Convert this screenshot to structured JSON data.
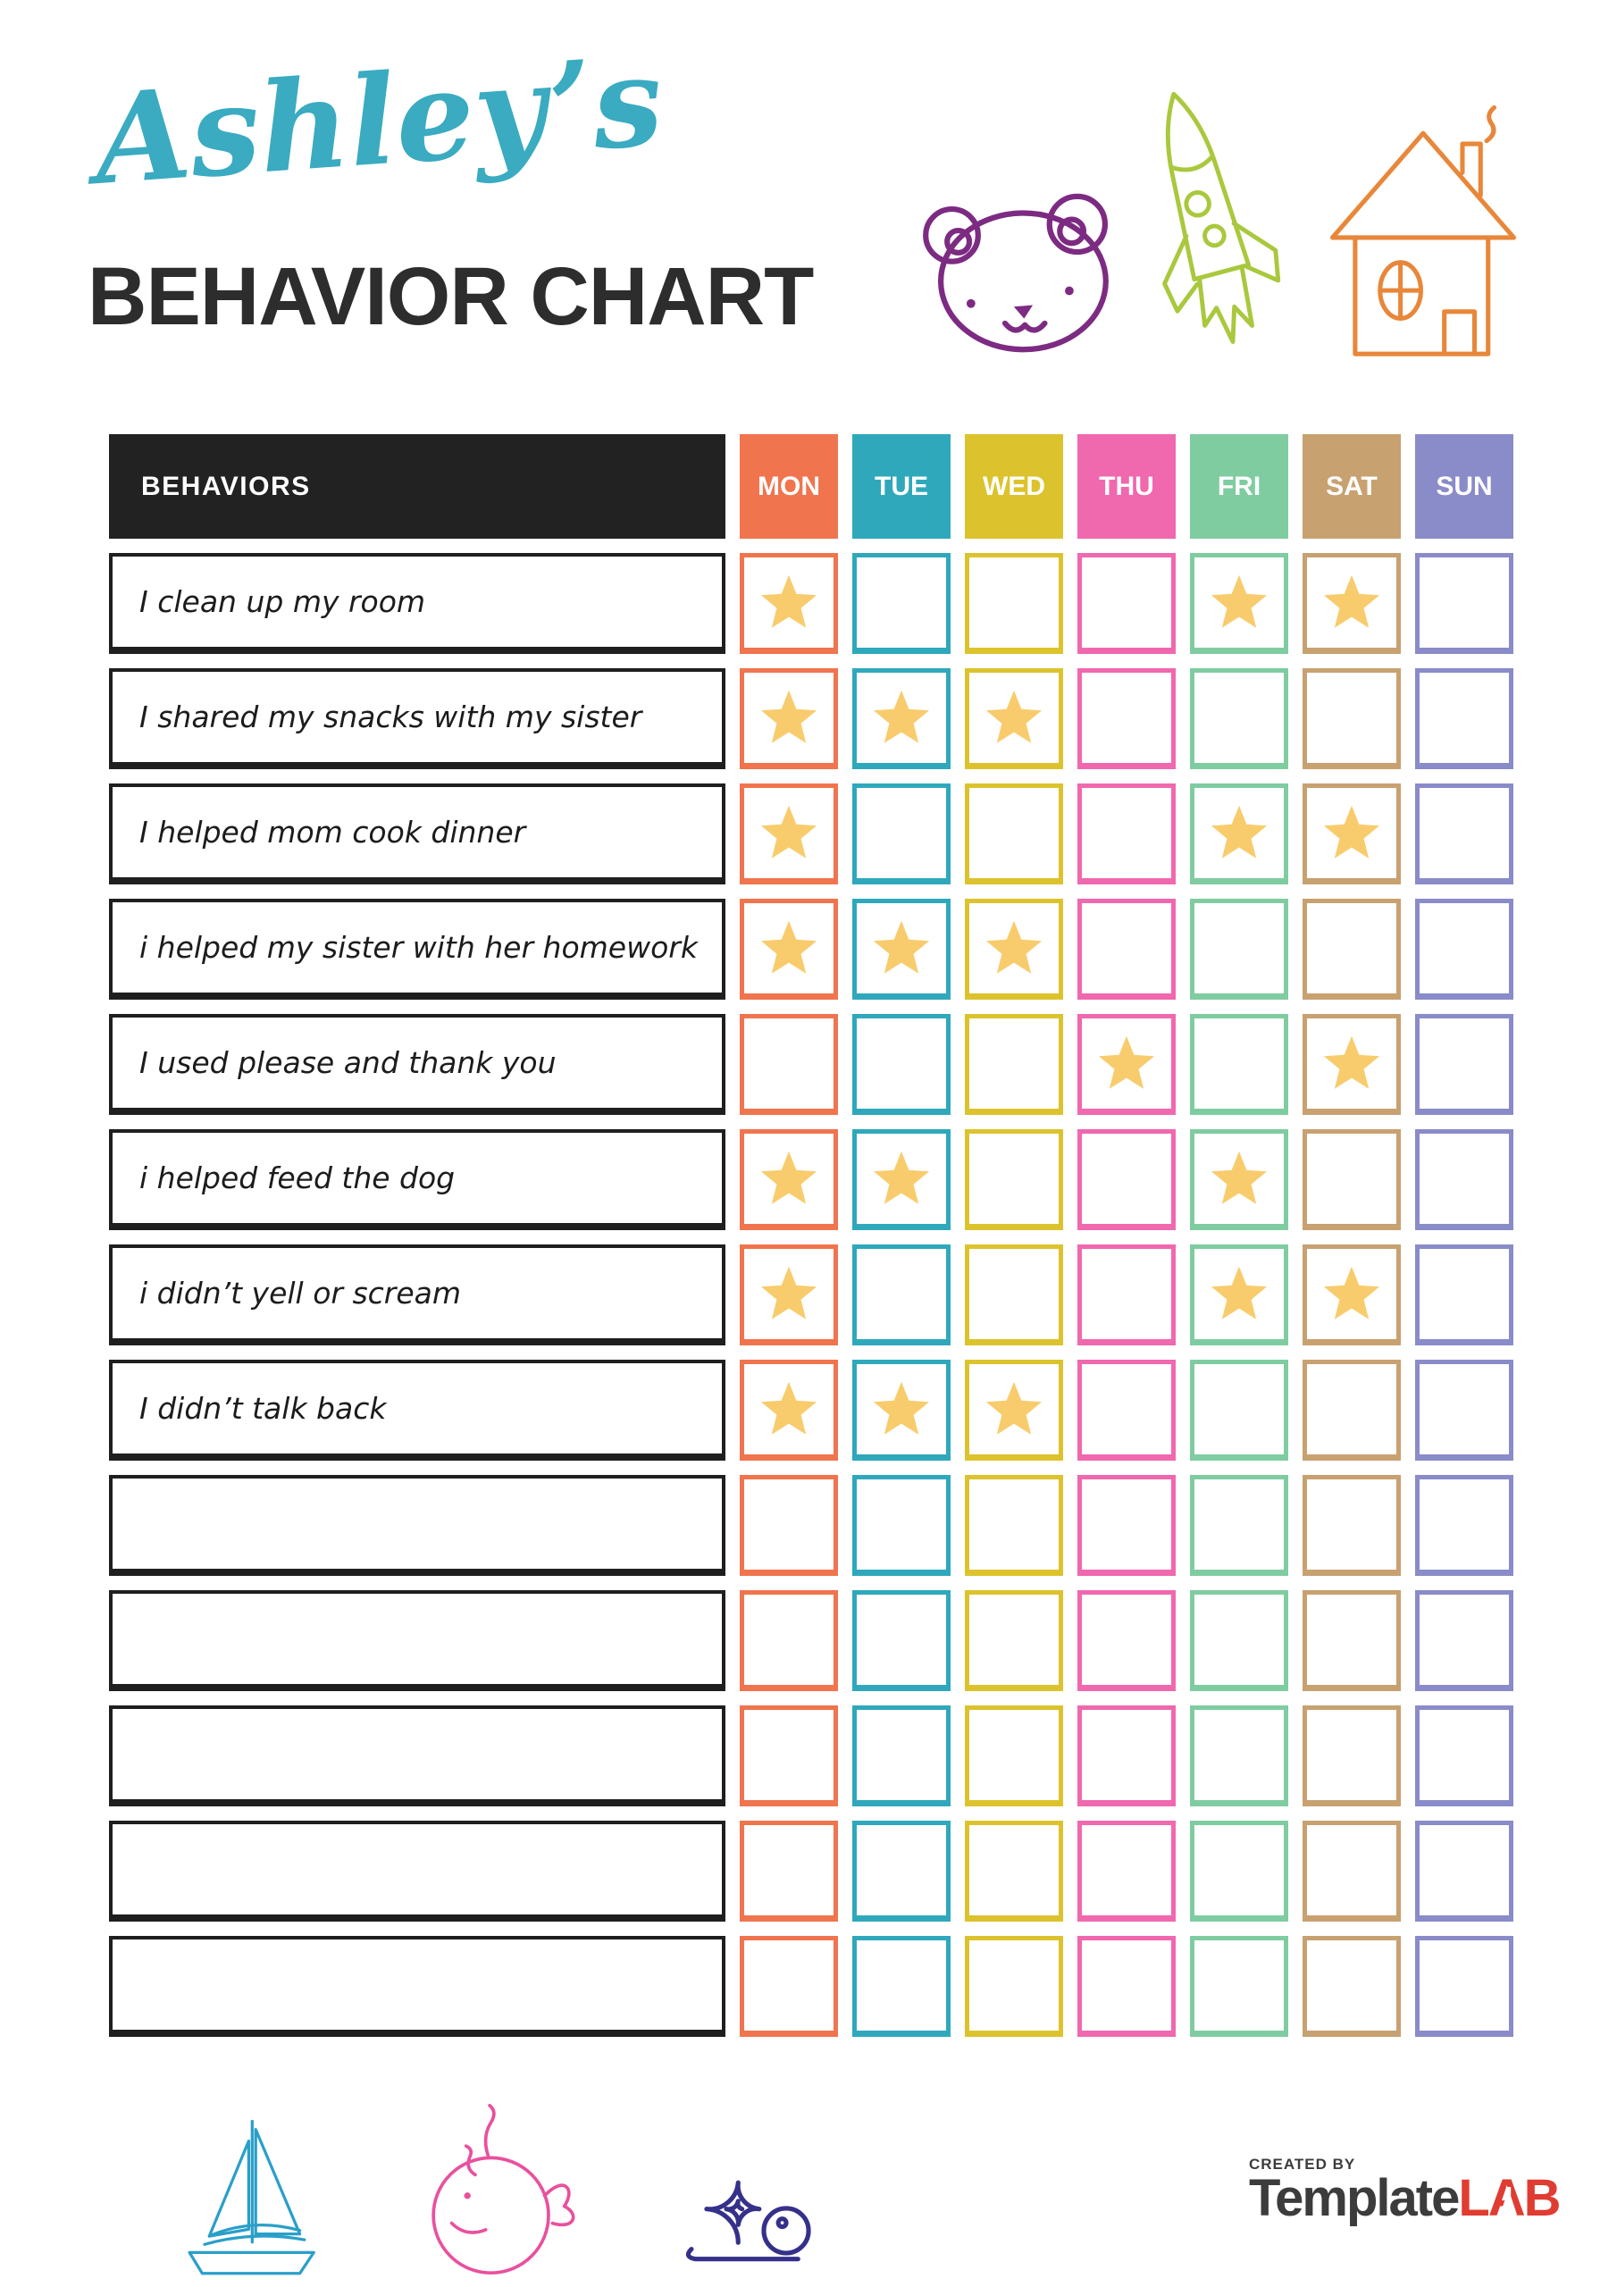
{
  "header": {
    "child_name": "Ashley’s",
    "title": "BEHAVIOR CHART",
    "name_color": "#3AABC1",
    "title_color": "#2D2D2D"
  },
  "doodles": {
    "bear_color": "#7D2B82",
    "rocket_color": "#A9C83D",
    "house_color": "#E8873A",
    "boat_color": "#2A9FC9",
    "whale_color": "#E9509E",
    "snail_color": "#35318A"
  },
  "table": {
    "behaviors_header": "BEHAVIORS",
    "header_bg": "#222222",
    "header_text_color": "#FFFFFF",
    "days": [
      {
        "label": "MON",
        "color": "#F0744E"
      },
      {
        "label": "TUE",
        "color": "#2FA8BC"
      },
      {
        "label": "WED",
        "color": "#DCC32D"
      },
      {
        "label": "THU",
        "color": "#F068AE"
      },
      {
        "label": "FRI",
        "color": "#7FCCA1"
      },
      {
        "label": "SAT",
        "color": "#C8A171"
      },
      {
        "label": "SUN",
        "color": "#8A8BC9"
      }
    ],
    "star_color": "#F8CC6D",
    "rows": [
      {
        "behavior": "I clean up my room",
        "stars": [
          "MON",
          "FRI",
          "SAT"
        ]
      },
      {
        "behavior": "I shared my snacks with my sister",
        "stars": [
          "MON",
          "TUE",
          "WED"
        ]
      },
      {
        "behavior": "I helped mom cook dinner",
        "stars": [
          "MON",
          "FRI",
          "SAT"
        ]
      },
      {
        "behavior": "i helped my sister with her homework",
        "stars": [
          "MON",
          "TUE",
          "WED"
        ]
      },
      {
        "behavior": "I used please and thank you",
        "stars": [
          "THU",
          "SAT"
        ]
      },
      {
        "behavior": "i helped feed the dog",
        "stars": [
          "MON",
          "TUE",
          "FRI"
        ]
      },
      {
        "behavior": "i didn’t yell or scream",
        "stars": [
          "MON",
          "FRI",
          "SAT"
        ]
      },
      {
        "behavior": "I didn’t talk back",
        "stars": [
          "MON",
          "TUE",
          "WED"
        ]
      },
      {
        "behavior": "",
        "stars": []
      },
      {
        "behavior": "",
        "stars": []
      },
      {
        "behavior": "",
        "stars": []
      },
      {
        "behavior": "",
        "stars": []
      },
      {
        "behavior": "",
        "stars": []
      }
    ]
  },
  "footer": {
    "created_by": "CREATED BY",
    "brand_template": "Template",
    "brand_lab": "LAB",
    "brand_template_color": "#3C3C3C",
    "brand_lab_color": "#E03C31"
  }
}
